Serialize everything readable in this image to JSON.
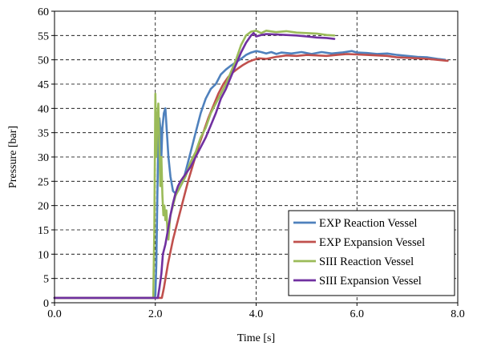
{
  "chart_data": {
    "type": "line",
    "xlabel": "Time [s]",
    "ylabel": "Pressure [bar]",
    "xlim": [
      0,
      8
    ],
    "ylim": [
      0,
      60
    ],
    "x_ticks": [
      0,
      2,
      4,
      6,
      8
    ],
    "x_tick_labels": [
      "0.0",
      "2.0",
      "4.0",
      "6.0",
      "8.0"
    ],
    "y_ticks": [
      0,
      5,
      10,
      15,
      20,
      25,
      30,
      35,
      40,
      45,
      50,
      55,
      60
    ],
    "y_tick_labels": [
      "0",
      "5",
      "10",
      "15",
      "20",
      "25",
      "30",
      "35",
      "40",
      "45",
      "50",
      "55",
      "60"
    ],
    "grid": "dashed",
    "legend_position": "bottom-right",
    "series": [
      {
        "name": "EXP Reaction Vessel",
        "color": "#4f81bd",
        "points": [
          [
            0,
            1
          ],
          [
            1.97,
            1
          ],
          [
            2.0,
            1.5
          ],
          [
            2.02,
            8
          ],
          [
            2.04,
            22
          ],
          [
            2.06,
            33
          ],
          [
            2.08,
            38
          ],
          [
            2.1,
            36
          ],
          [
            2.12,
            30
          ],
          [
            2.14,
            36
          ],
          [
            2.17,
            39
          ],
          [
            2.2,
            40
          ],
          [
            2.23,
            35
          ],
          [
            2.26,
            30
          ],
          [
            2.3,
            26
          ],
          [
            2.35,
            23
          ],
          [
            2.4,
            22.5
          ],
          [
            2.45,
            23
          ],
          [
            2.5,
            24
          ],
          [
            2.55,
            25
          ],
          [
            2.6,
            27
          ],
          [
            2.7,
            31
          ],
          [
            2.8,
            35
          ],
          [
            2.9,
            39
          ],
          [
            3.0,
            42
          ],
          [
            3.1,
            44
          ],
          [
            3.2,
            45
          ],
          [
            3.3,
            47
          ],
          [
            3.4,
            48
          ],
          [
            3.5,
            48.8
          ],
          [
            3.6,
            49.5
          ],
          [
            3.7,
            50.2
          ],
          [
            3.8,
            51
          ],
          [
            3.9,
            51.5
          ],
          [
            4.0,
            51.8
          ],
          [
            4.1,
            51.6
          ],
          [
            4.2,
            51.3
          ],
          [
            4.3,
            51.6
          ],
          [
            4.4,
            51.2
          ],
          [
            4.5,
            51.5
          ],
          [
            4.7,
            51.3
          ],
          [
            4.9,
            51.6
          ],
          [
            5.1,
            51.2
          ],
          [
            5.3,
            51.6
          ],
          [
            5.5,
            51.3
          ],
          [
            5.7,
            51.5
          ],
          [
            5.9,
            51.8
          ],
          [
            6.0,
            51.5
          ],
          [
            6.2,
            51.4
          ],
          [
            6.4,
            51.2
          ],
          [
            6.6,
            51.3
          ],
          [
            6.8,
            51.0
          ],
          [
            7.0,
            50.8
          ],
          [
            7.2,
            50.6
          ],
          [
            7.4,
            50.5
          ],
          [
            7.6,
            50.2
          ],
          [
            7.75,
            50.0
          ]
        ]
      },
      {
        "name": "EXP Expansion Vessel",
        "color": "#c0504d",
        "points": [
          [
            0,
            1
          ],
          [
            2.13,
            1
          ],
          [
            2.17,
            3
          ],
          [
            2.25,
            8
          ],
          [
            2.35,
            13
          ],
          [
            2.45,
            17
          ],
          [
            2.55,
            21
          ],
          [
            2.65,
            25
          ],
          [
            2.75,
            28.5
          ],
          [
            2.85,
            32
          ],
          [
            2.95,
            35
          ],
          [
            3.05,
            38
          ],
          [
            3.15,
            40.5
          ],
          [
            3.25,
            43
          ],
          [
            3.35,
            45
          ],
          [
            3.45,
            46.5
          ],
          [
            3.55,
            47.5
          ],
          [
            3.65,
            48.3
          ],
          [
            3.75,
            49
          ],
          [
            3.85,
            49.6
          ],
          [
            3.95,
            50
          ],
          [
            4.05,
            50.3
          ],
          [
            4.2,
            50.2
          ],
          [
            4.4,
            50.6
          ],
          [
            4.6,
            50.9
          ],
          [
            4.8,
            50.8
          ],
          [
            5.0,
            51
          ],
          [
            5.2,
            50.9
          ],
          [
            5.4,
            50.8
          ],
          [
            5.6,
            51
          ],
          [
            5.8,
            51.2
          ],
          [
            6.0,
            51.1
          ],
          [
            6.2,
            51
          ],
          [
            6.4,
            50.9
          ],
          [
            6.6,
            50.8
          ],
          [
            6.8,
            50.5
          ],
          [
            7.0,
            50.4
          ],
          [
            7.2,
            50.3
          ],
          [
            7.4,
            50.2
          ],
          [
            7.6,
            50.0
          ],
          [
            7.8,
            49.8
          ]
        ]
      },
      {
        "name": "SIII Reaction Vessel",
        "color": "#9bbb59",
        "points": [
          [
            0,
            1
          ],
          [
            1.96,
            1
          ],
          [
            1.98,
            15
          ],
          [
            2.0,
            43
          ],
          [
            2.02,
            30
          ],
          [
            2.04,
            38
          ],
          [
            2.06,
            41
          ],
          [
            2.08,
            32
          ],
          [
            2.1,
            24
          ],
          [
            2.12,
            30
          ],
          [
            2.14,
            22
          ],
          [
            2.16,
            18
          ],
          [
            2.18,
            20
          ],
          [
            2.2,
            17
          ],
          [
            2.22,
            19
          ],
          [
            2.24,
            15
          ],
          [
            2.26,
            13
          ],
          [
            2.28,
            16
          ],
          [
            2.3,
            18
          ],
          [
            2.35,
            20
          ],
          [
            2.4,
            22
          ],
          [
            2.5,
            24
          ],
          [
            2.6,
            26
          ],
          [
            2.7,
            29
          ],
          [
            2.8,
            31
          ],
          [
            2.9,
            34
          ],
          [
            3.0,
            36
          ],
          [
            3.1,
            39
          ],
          [
            3.2,
            41
          ],
          [
            3.3,
            43
          ],
          [
            3.4,
            45
          ],
          [
            3.5,
            47.5
          ],
          [
            3.6,
            50
          ],
          [
            3.7,
            53
          ],
          [
            3.8,
            55
          ],
          [
            3.9,
            55.8
          ],
          [
            4.0,
            56
          ],
          [
            4.1,
            55.5
          ],
          [
            4.2,
            56
          ],
          [
            4.4,
            55.7
          ],
          [
            4.6,
            55.9
          ],
          [
            4.8,
            55.6
          ],
          [
            5.0,
            55.5
          ],
          [
            5.2,
            55.4
          ],
          [
            5.4,
            55.1
          ],
          [
            5.55,
            55
          ]
        ]
      },
      {
        "name": "SIII Expansion Vessel",
        "color": "#7030a0",
        "points": [
          [
            0,
            1
          ],
          [
            2.05,
            1
          ],
          [
            2.08,
            3
          ],
          [
            2.12,
            6
          ],
          [
            2.15,
            10
          ],
          [
            2.2,
            12
          ],
          [
            2.25,
            15
          ],
          [
            2.3,
            18
          ],
          [
            2.35,
            20.5
          ],
          [
            2.4,
            22.5
          ],
          [
            2.45,
            24
          ],
          [
            2.5,
            25
          ],
          [
            2.6,
            26.5
          ],
          [
            2.7,
            28
          ],
          [
            2.8,
            30
          ],
          [
            2.9,
            32
          ],
          [
            3.0,
            34
          ],
          [
            3.1,
            36.5
          ],
          [
            3.2,
            39
          ],
          [
            3.3,
            42
          ],
          [
            3.4,
            44
          ],
          [
            3.5,
            46.5
          ],
          [
            3.6,
            49
          ],
          [
            3.7,
            51.5
          ],
          [
            3.8,
            53.5
          ],
          [
            3.9,
            55
          ],
          [
            3.95,
            55.5
          ],
          [
            4.0,
            54.8
          ],
          [
            4.1,
            55.1
          ],
          [
            4.2,
            55.3
          ],
          [
            4.4,
            55.2
          ],
          [
            4.6,
            55.1
          ],
          [
            4.8,
            55.0
          ],
          [
            5.0,
            54.8
          ],
          [
            5.2,
            54.6
          ],
          [
            5.4,
            54.5
          ],
          [
            5.55,
            54.3
          ]
        ]
      }
    ]
  }
}
